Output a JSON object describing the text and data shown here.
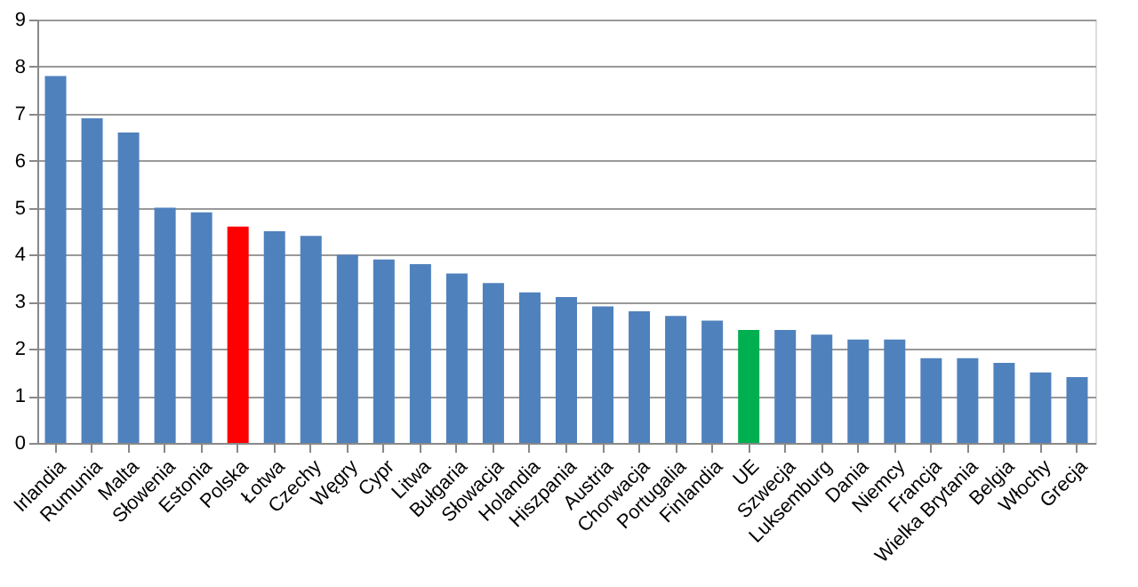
{
  "chart_data": {
    "type": "bar",
    "categories": [
      "Irlandia",
      "Rumunia",
      "Malta",
      "Słowenia",
      "Estonia",
      "Polska",
      "Łotwa",
      "Czechy",
      "Węgry",
      "Cypr",
      "Litwa",
      "Bułgaria",
      "Słowacja",
      "Holandia",
      "Hiszpania",
      "Austria",
      "Chorwacja",
      "Portugalia",
      "Finlandia",
      "UE",
      "Szwecja",
      "Luksemburg",
      "Dania",
      "Niemcy",
      "Francja",
      "Wielka Brytania",
      "Belgia",
      "Włochy",
      "Grecja"
    ],
    "values": [
      7.8,
      6.9,
      6.6,
      5.0,
      4.9,
      4.6,
      4.5,
      4.4,
      4.0,
      3.9,
      3.8,
      3.6,
      3.4,
      3.2,
      3.1,
      2.9,
      2.8,
      2.7,
      2.6,
      2.4,
      2.4,
      2.3,
      2.2,
      2.2,
      1.8,
      1.8,
      1.7,
      1.5,
      1.4
    ],
    "colors": [
      "#4f81bd",
      "#4f81bd",
      "#4f81bd",
      "#4f81bd",
      "#4f81bd",
      "#ff0000",
      "#4f81bd",
      "#4f81bd",
      "#4f81bd",
      "#4f81bd",
      "#4f81bd",
      "#4f81bd",
      "#4f81bd",
      "#4f81bd",
      "#4f81bd",
      "#4f81bd",
      "#4f81bd",
      "#4f81bd",
      "#4f81bd",
      "#00b050",
      "#4f81bd",
      "#4f81bd",
      "#4f81bd",
      "#4f81bd",
      "#4f81bd",
      "#4f81bd",
      "#4f81bd",
      "#4f81bd",
      "#4f81bd"
    ],
    "ylim": [
      0,
      9
    ],
    "yticks": [
      0,
      1,
      2,
      3,
      4,
      5,
      6,
      7,
      8,
      9
    ],
    "grid": "y"
  }
}
